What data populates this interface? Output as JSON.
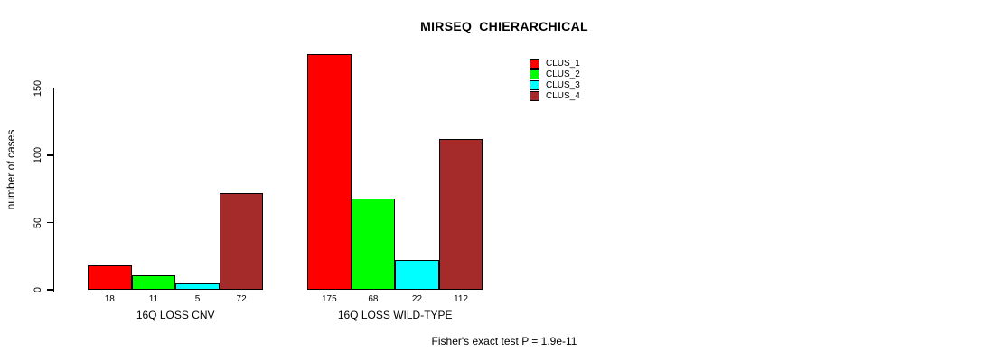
{
  "chart_data": {
    "type": "bar",
    "title": "MIRSEQ_CHIERARCHICAL",
    "ylabel": "number of cases",
    "xlabel": "",
    "categories": [
      "16Q LOSS CNV",
      "16Q LOSS WILD-TYPE"
    ],
    "series": [
      {
        "name": "CLUS_1",
        "color": "#FF0000",
        "values": [
          18,
          175
        ]
      },
      {
        "name": "CLUS_2",
        "color": "#00FF00",
        "values": [
          11,
          68
        ]
      },
      {
        "name": "CLUS_3",
        "color": "#00FFFF",
        "values": [
          5,
          22
        ]
      },
      {
        "name": "CLUS_4",
        "color": "#A52A2A",
        "values": [
          72,
          112
        ]
      }
    ],
    "bar_value_labels": [
      [
        "18",
        "11",
        "5",
        "72"
      ],
      [
        "175",
        "68",
        "22",
        "112"
      ]
    ],
    "yticks": [
      0,
      50,
      100,
      150
    ],
    "axis_range": [
      0,
      150
    ],
    "ylim": [
      0,
      175
    ],
    "grid": false,
    "legend_position": "top-right",
    "caption": "Fisher's exact test P = 1.9e-11"
  },
  "colors": {
    "background": "#FFFFFF",
    "text": "#000000",
    "bar_border": "#000000"
  }
}
